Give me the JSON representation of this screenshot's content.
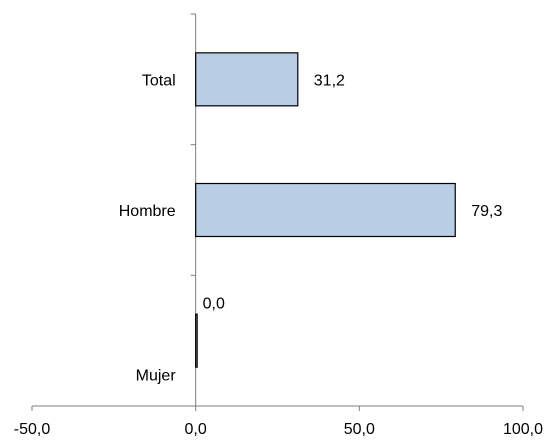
{
  "chart_data": {
    "type": "bar",
    "orientation": "horizontal",
    "categories": [
      "Total",
      "Hombre",
      "Mujer"
    ],
    "values": [
      31.2,
      79.3,
      0.0
    ],
    "data_labels": [
      "31,2",
      "79,3",
      "0,0"
    ],
    "xlim": [
      -50,
      100
    ],
    "x_ticks": [
      -50,
      0,
      50,
      100
    ],
    "x_tick_labels": [
      "-50,0",
      "0,0",
      "50,0",
      "100,0"
    ],
    "title": "",
    "xlabel": "",
    "ylabel": "",
    "legend": "none",
    "grid": false,
    "bar_color": "#b9cde5",
    "bar_border_color": "#000000",
    "axis_color": "#7f7f7f"
  }
}
